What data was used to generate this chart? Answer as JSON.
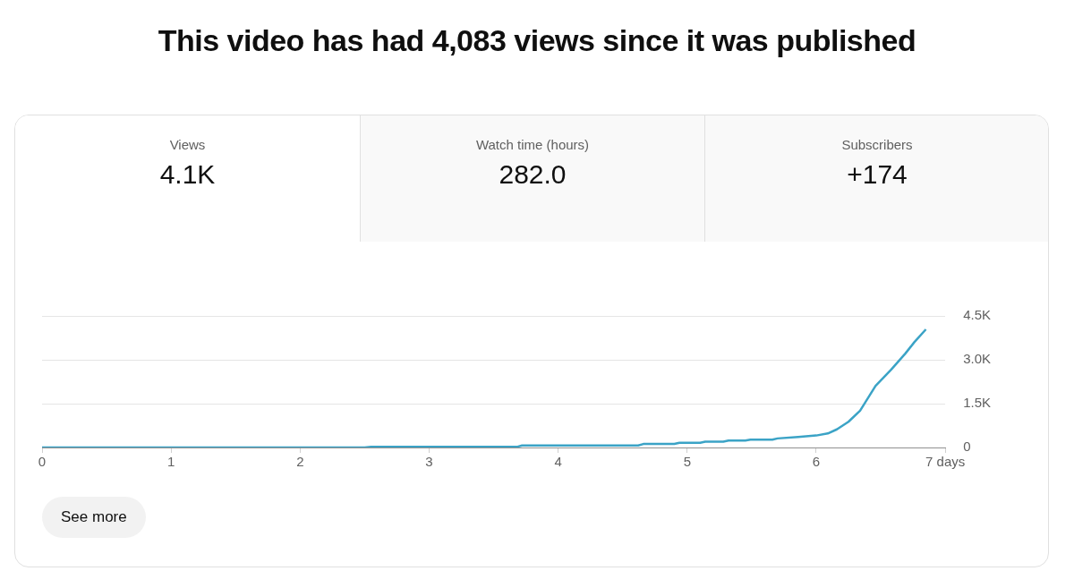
{
  "chart_data": {
    "type": "line",
    "title": "This video has had 4,083 views since it was published",
    "annotations": [
      "Views",
      "4.1K",
      "Watch time (hours)",
      "282.0",
      "Subscribers",
      "+174",
      "See more"
    ],
    "series": [
      {
        "color": "#3ba3c6",
        "x": [
          0,
          1,
          2,
          2.5,
          2.55,
          3.68,
          3.72,
          4.62,
          4.66,
          4.9,
          4.94,
          5.1,
          5.14,
          5.28,
          5.32,
          5.45,
          5.49,
          5.66,
          5.7,
          5.86,
          6.0,
          6.09,
          6.16,
          6.25,
          6.34,
          6.46,
          6.58,
          6.69,
          6.76,
          6.85
        ],
        "values": [
          0,
          0,
          0,
          0,
          20,
          20,
          70,
          70,
          120,
          120,
          160,
          160,
          200,
          200,
          240,
          240,
          270,
          270,
          310,
          360,
          410,
          480,
          620,
          880,
          1260,
          2110,
          2660,
          3210,
          3600,
          4040
        ]
      }
    ],
    "xlim": [
      0,
      7
    ],
    "xticks": [
      0,
      1,
      2,
      3,
      4,
      5,
      6,
      {
        "value": 7,
        "label": "7 days"
      }
    ],
    "ylim": [
      0,
      4500
    ],
    "yticks": [
      0,
      {
        "value": 1500,
        "label": "1.5K"
      },
      {
        "value": 3000,
        "label": "3.0K"
      },
      {
        "value": 4500,
        "label": "4.5K"
      }
    ],
    "grid": "y",
    "marker": "none",
    "line_style": "solid",
    "legend": false
  }
}
